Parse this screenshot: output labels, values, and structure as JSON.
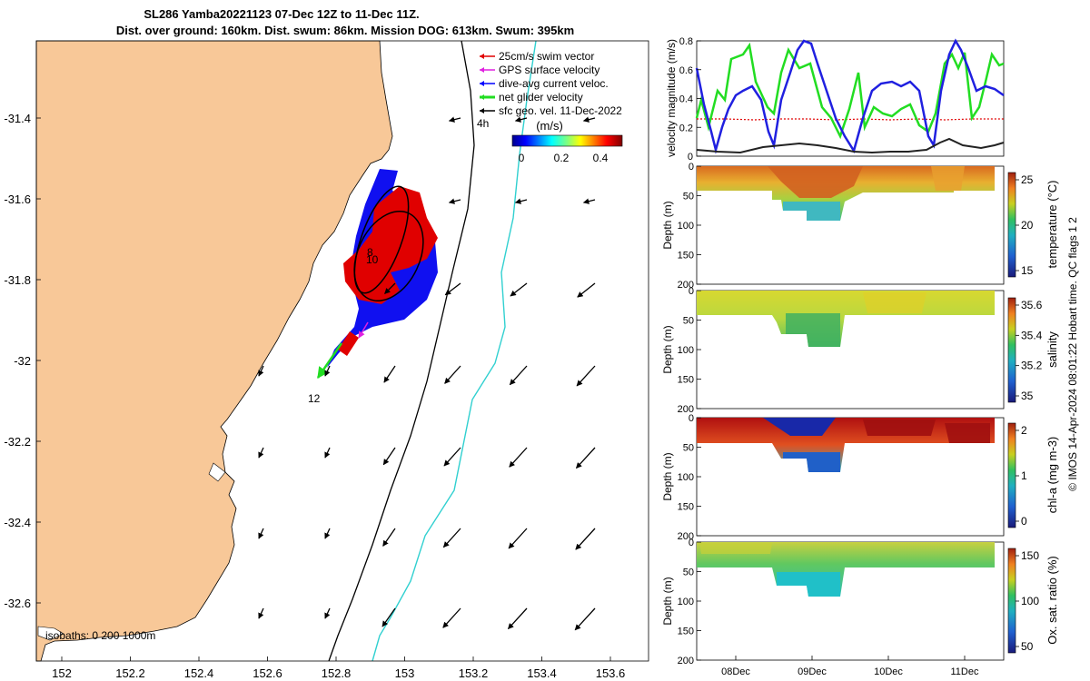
{
  "title": {
    "line1": "SL286 Yamba20221123 07-Dec 12Z to 11-Dec 11Z.",
    "line2": "Dist. over ground: 160km. Dist. swum: 86km. Mission DOG: 613km. Swum: 395km"
  },
  "map": {
    "lon_ticks": [
      "152",
      "152.2",
      "152.4",
      "152.6",
      "152.8",
      "153",
      "153.2",
      "153.4",
      "153.6"
    ],
    "lat_ticks": [
      "-31.4",
      "-31.6",
      "-31.8",
      "-32",
      "-32.2",
      "-32.4",
      "-32.6"
    ],
    "legend": [
      {
        "label": "25cm/s swim vector",
        "color": "#e00000"
      },
      {
        "label": "GPS surface velocity",
        "color": "#e020e0"
      },
      {
        "label": "dive-avg current veloc.",
        "color": "#0000ff"
      },
      {
        "label": "net glider velocity",
        "color": "#22dd22"
      },
      {
        "label": "sfc geo. vel. 11-Dec-2022",
        "color": "#000000"
      }
    ],
    "colorbar": {
      "label": "(m/s)",
      "ticks": [
        "0",
        "0.2",
        "0.4"
      ]
    },
    "track_labels": [
      "4h",
      "8",
      "10",
      "12"
    ],
    "isobaths_label": "isobaths: 0 200  1000m"
  },
  "velocity_panel": {
    "ylabel": "velocity magnitude (m/s)",
    "yticks": [
      "0",
      "0.2",
      "0.4",
      "0.6",
      "0.8"
    ],
    "ylim": [
      0,
      0.8
    ],
    "colors": {
      "green": "#22dd22",
      "blue": "#2020e0",
      "red": "#e00000",
      "black": "#222222"
    }
  },
  "sections": [
    {
      "ylabel": "Depth (m)",
      "cbar_label": "temperature (°C)",
      "cbar_ticks": [
        "25",
        "20",
        "15"
      ]
    },
    {
      "ylabel": "Depth (m)",
      "cbar_label": "salinity",
      "cbar_ticks": [
        "35.6",
        "35.4",
        "35.2",
        "35"
      ]
    },
    {
      "ylabel": "Depth (m)",
      "cbar_label": "chl-a (mg m-3)",
      "cbar_ticks": [
        "2",
        "1",
        "0"
      ]
    },
    {
      "ylabel": "Depth (m)",
      "cbar_label": "Ox. sat. ratio (%)",
      "cbar_ticks": [
        "150",
        "100",
        "50"
      ]
    }
  ],
  "depth_ticks": [
    "0",
    "50",
    "100",
    "150",
    "200"
  ],
  "time_ticks": [
    "08Dec",
    "09Dec",
    "10Dec",
    "11Dec"
  ],
  "footer": "© IMOS 14-Apr-2024 08:01:22 Hobart time. QC flags 1  2"
}
